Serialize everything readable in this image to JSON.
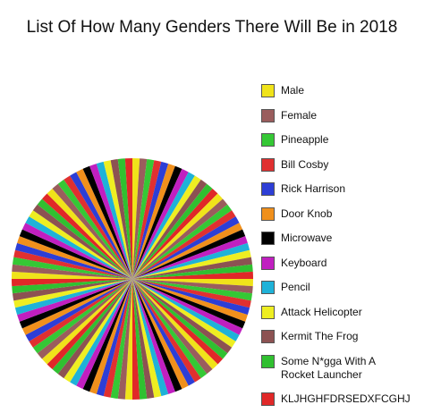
{
  "chart_data": {
    "type": "pie",
    "title": "List Of How Many Genders There Will Be in 2018",
    "legend": [
      {
        "name": "Male",
        "color": "#f0e31a"
      },
      {
        "name": "Female",
        "color": "#9a5d5d"
      },
      {
        "name": "Pineapple",
        "color": "#35c835"
      },
      {
        "name": "Bill Cosby",
        "color": "#e03030"
      },
      {
        "name": "Rick Harrison",
        "color": "#2d3ed6"
      },
      {
        "name": "Door Knob",
        "color": "#f0901c"
      },
      {
        "name": "Microwave",
        "color": "#000000"
      },
      {
        "name": "Keyboard",
        "color": "#c01fc0"
      },
      {
        "name": "Pencil",
        "color": "#1fb2d8"
      },
      {
        "name": "Attack Helicopter",
        "color": "#eeee22"
      },
      {
        "name": "Kermit The Frog",
        "color": "#8c5252"
      },
      {
        "name": "Some N*gga With A Rocket Launcher",
        "color": "#30c030"
      },
      {
        "name": "KLJHGHFDRSEDXFCGHJ",
        "color": "#e02828"
      }
    ],
    "values": [
      1,
      1,
      1,
      1,
      1,
      1,
      1,
      1,
      1,
      1,
      1,
      1,
      1,
      1,
      1,
      1,
      1,
      1,
      1,
      1,
      1,
      1,
      1,
      1,
      1,
      1,
      1,
      1,
      1,
      1,
      1,
      1,
      1,
      1,
      1,
      1,
      1,
      1,
      1,
      1,
      1,
      1,
      1,
      1,
      1,
      1,
      1,
      1,
      1,
      1,
      1,
      1,
      1,
      1,
      1,
      1,
      1,
      1,
      1,
      1,
      1,
      1,
      1,
      1,
      1,
      1,
      1,
      1,
      1,
      1,
      1,
      1,
      1,
      1,
      1,
      1,
      1,
      1,
      1,
      1,
      1,
      1,
      1,
      1,
      1,
      1,
      1,
      1,
      1,
      1,
      1,
      1,
      1,
      1,
      1,
      1,
      1,
      1,
      1,
      1,
      1,
      1,
      1,
      1
    ]
  }
}
